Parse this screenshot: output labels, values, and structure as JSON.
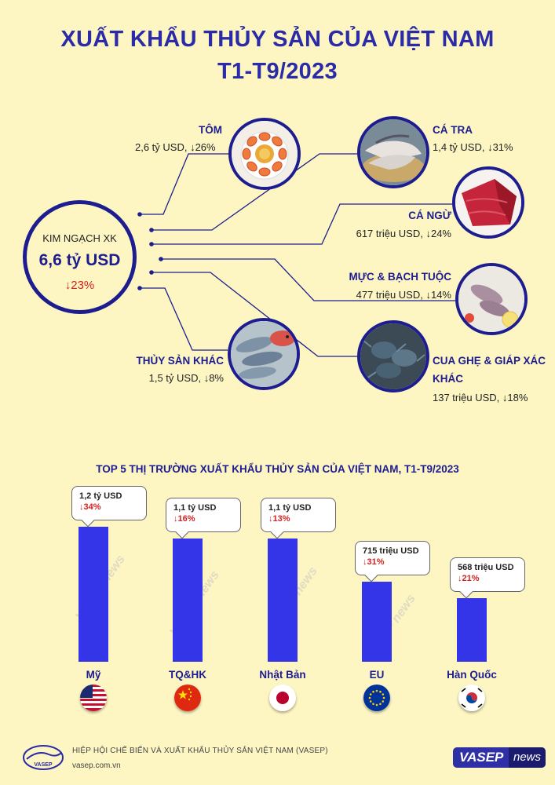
{
  "header": {
    "title_line1": "XUẤT KHẨU THỦY SẢN CỦA VIỆT NAM",
    "title_line2": "T1-T9/2023"
  },
  "hub": {
    "label": "KIM NGẠCH XK",
    "value": "6,6 tỷ USD",
    "change": "↓23%"
  },
  "products": [
    {
      "name": "TÔM",
      "value": "2,6 tỷ USD, ↓26%",
      "image": "shrimp"
    },
    {
      "name": "CÁ TRA",
      "value": "1,4 tỷ USD, ↓31%",
      "image": "pangasius"
    },
    {
      "name": "CÁ NGỪ",
      "value": "617 triệu USD, ↓24%",
      "image": "tuna"
    },
    {
      "name": "MỰC & BẠCH TUỘC",
      "value": "477 triệu USD, ↓14%",
      "image": "squid"
    },
    {
      "name": "THỦY SẢN KHÁC",
      "value": "1,5 tỷ USD, ↓8%",
      "image": "fish"
    },
    {
      "name_line1": "CUA GHẸ & GIÁP XÁC",
      "name_line2": "KHÁC",
      "value": "137 triệu USD, ↓18%",
      "image": "crab"
    }
  ],
  "colors": {
    "background": "#fdf6c3",
    "primary": "#1d1d8f",
    "bar": "#3434e8",
    "decrease": "#d32222"
  },
  "chart_data": {
    "type": "bar",
    "title": "TOP 5 THỊ TRƯỜNG XUẤT KHẨU THỦY SẢN CỦA VIỆT NAM, T1-T9/2023",
    "categories": [
      "Mỹ",
      "TQ&HK",
      "Nhật Bản",
      "EU",
      "Hàn Quốc"
    ],
    "values": [
      1200,
      1100,
      1100,
      715,
      568
    ],
    "value_labels": [
      "1,2 tỷ USD",
      "1,1 tỷ USD",
      "1,1 tỷ USD",
      "715 triệu USD",
      "568 triệu USD"
    ],
    "change_labels": [
      "↓34%",
      "↓16%",
      "↓13%",
      "↓31%",
      "↓21%"
    ],
    "unit": "triệu USD",
    "flags": [
      "usa-flag",
      "china-flag",
      "japan-flag",
      "eu-flag",
      "korea-flag"
    ],
    "ylim": [
      0,
      1300
    ],
    "grid": false,
    "legend": "none"
  },
  "watermark": {
    "brand": "VASEP",
    "word": "news"
  },
  "footer": {
    "org": "HIỆP HỘI CHẾ BIẾN VÀ XUẤT KHẨU THỦY SẢN VIỆT NAM (VASEP)",
    "url": "vasep.com.vn",
    "logo_text": "VASEP",
    "badge_brand": "VASEP",
    "badge_word": "news"
  }
}
